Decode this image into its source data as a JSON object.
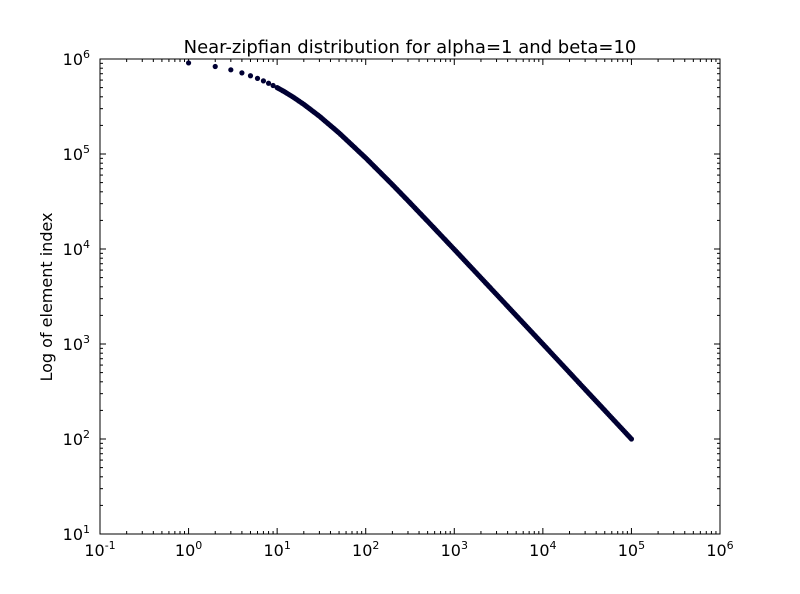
{
  "chart_data": {
    "type": "scatter",
    "title": "Near-zipfian distribution for alpha=1 and beta=10",
    "xlabel": "",
    "ylabel": "Log of element index",
    "xscale": "log",
    "yscale": "log",
    "xlim": [
      0.1,
      1000000
    ],
    "ylim": [
      10,
      1000000
    ],
    "x_ticks": [
      {
        "base": "10",
        "exp": "-1"
      },
      {
        "base": "10",
        "exp": "0"
      },
      {
        "base": "10",
        "exp": "1"
      },
      {
        "base": "10",
        "exp": "2"
      },
      {
        "base": "10",
        "exp": "3"
      },
      {
        "base": "10",
        "exp": "4"
      },
      {
        "base": "10",
        "exp": "5"
      },
      {
        "base": "10",
        "exp": "6"
      }
    ],
    "y_ticks": [
      {
        "base": "10",
        "exp": "1"
      },
      {
        "base": "10",
        "exp": "2"
      },
      {
        "base": "10",
        "exp": "3"
      },
      {
        "base": "10",
        "exp": "4"
      },
      {
        "base": "10",
        "exp": "5"
      },
      {
        "base": "10",
        "exp": "6"
      }
    ],
    "grid": false,
    "legend": false,
    "marker_color": "#000033",
    "series": [
      {
        "points": [
          [
            1,
            909091
          ],
          [
            2,
            833333
          ],
          [
            3,
            769231
          ],
          [
            4,
            714286
          ],
          [
            5,
            666667
          ],
          [
            6,
            625000
          ],
          [
            7,
            588235
          ],
          [
            8,
            555556
          ],
          [
            9,
            526316
          ],
          [
            10,
            500000
          ],
          [
            12,
            454545
          ],
          [
            15,
            400000
          ],
          [
            20,
            333333
          ],
          [
            30,
            250000
          ],
          [
            50,
            166667
          ],
          [
            100,
            90909
          ],
          [
            200,
            47619
          ],
          [
            300,
            32258
          ],
          [
            500,
            19608
          ],
          [
            1000,
            9901
          ],
          [
            2000,
            4975
          ],
          [
            3000,
            3322
          ],
          [
            5000,
            1996
          ],
          [
            10000,
            1000
          ],
          [
            20000,
            500
          ],
          [
            30000,
            333
          ],
          [
            50000,
            200
          ],
          [
            100000,
            100
          ]
        ]
      }
    ]
  }
}
